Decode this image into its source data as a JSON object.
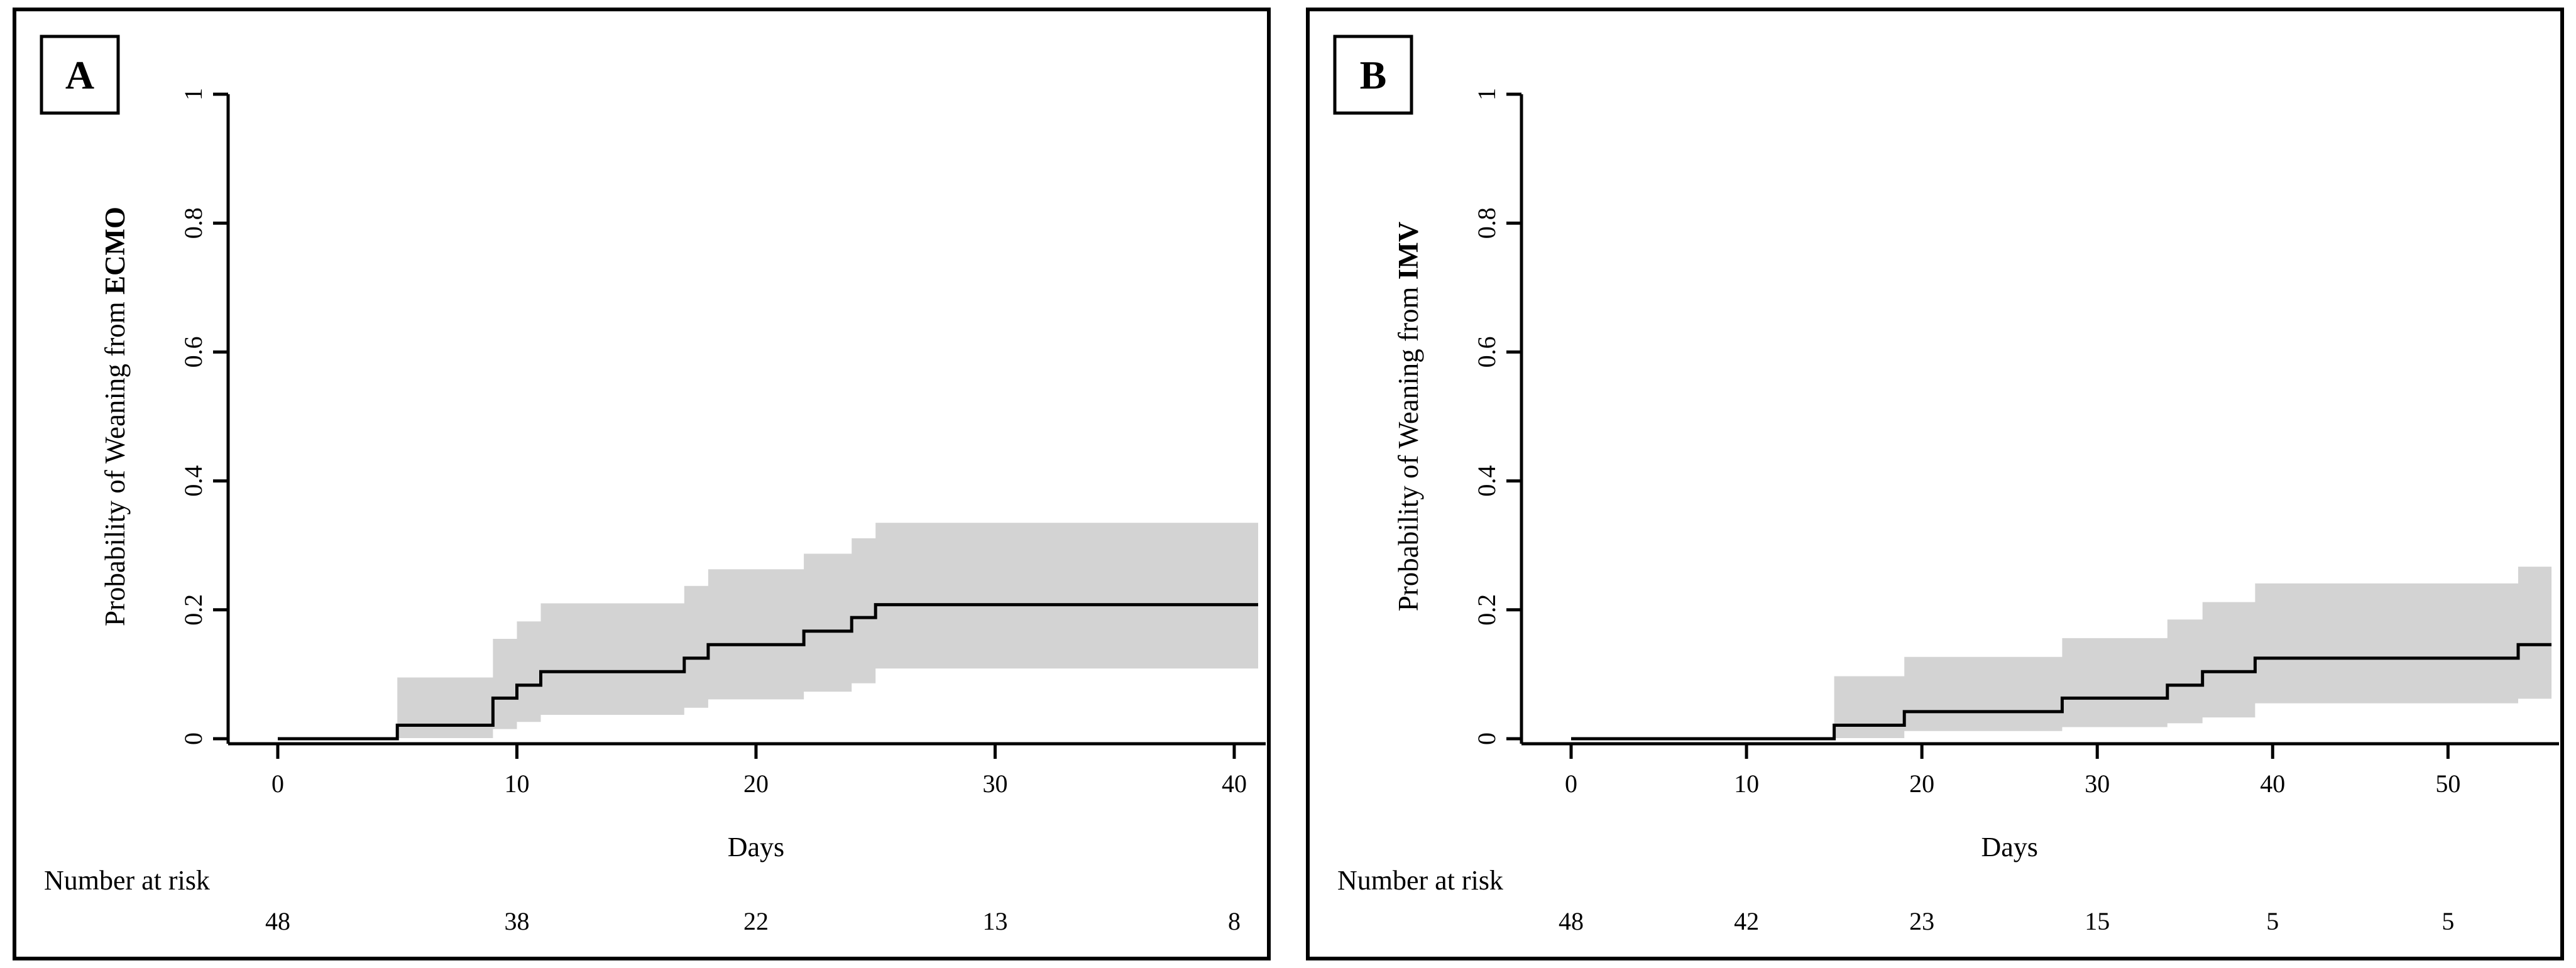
{
  "figure": {
    "background_color": "#ffffff",
    "border_color": "#000000",
    "curve_color": "#000000",
    "band_color": "#d3d3d3"
  },
  "chart_data": [
    {
      "type": "line",
      "panel_label": "A",
      "ylabel": "Probability of Weaning from ECMO",
      "ylabel_prefix": "Probability of Weaning from ",
      "ylabel_bold": "ECMO",
      "xlabel": "Days",
      "xlim": [
        0,
        41
      ],
      "ylim": [
        0,
        1
      ],
      "xticks": [
        0,
        10,
        20,
        30,
        40
      ],
      "yticks": [
        0,
        0.2,
        0.4,
        0.6,
        0.8,
        1
      ],
      "ytick_labels": [
        "0",
        "0.2",
        "0.4",
        "0.6",
        "0.8",
        "1"
      ],
      "grid": false,
      "legend": null,
      "step_curve": {
        "x": [
          0,
          5,
          9,
          10,
          11,
          17,
          18,
          22,
          24,
          25
        ],
        "y": [
          0,
          0.021,
          0.063,
          0.083,
          0.104,
          0.125,
          0.146,
          0.167,
          0.188,
          0.208
        ],
        "end_x": 41
      },
      "confidence_band": {
        "x": [
          5,
          9,
          10,
          11,
          17,
          18,
          22,
          24,
          25
        ],
        "lower": [
          0.001,
          0.015,
          0.026,
          0.037,
          0.048,
          0.061,
          0.073,
          0.086,
          0.109
        ],
        "upper": [
          0.095,
          0.155,
          0.182,
          0.21,
          0.237,
          0.263,
          0.287,
          0.311,
          0.335
        ],
        "end_x": 41
      },
      "number_at_risk": {
        "label": "Number at risk",
        "days": [
          0,
          10,
          20,
          30,
          40
        ],
        "values": [
          "48",
          "38",
          "22",
          "13",
          "8"
        ]
      }
    },
    {
      "type": "line",
      "panel_label": "B",
      "ylabel": "Probability of Weaning from IMV",
      "ylabel_prefix": "Probability of Weaning from ",
      "ylabel_bold": "IMV",
      "xlabel": "Days",
      "xlim": [
        0,
        56
      ],
      "ylim": [
        0,
        1
      ],
      "xticks": [
        0,
        10,
        20,
        30,
        40,
        50
      ],
      "yticks": [
        0,
        0.2,
        0.4,
        0.6,
        0.8,
        1
      ],
      "ytick_labels": [
        "0",
        "0.2",
        "0.4",
        "0.6",
        "0.8",
        "1"
      ],
      "grid": false,
      "legend": null,
      "step_curve": {
        "x": [
          0,
          15,
          19,
          28,
          34,
          36,
          39,
          54
        ],
        "y": [
          0,
          0.021,
          0.042,
          0.063,
          0.083,
          0.104,
          0.125,
          0.146
        ],
        "end_x": 55.9
      },
      "confidence_band": {
        "x": [
          15,
          19,
          28,
          34,
          36,
          39,
          54
        ],
        "lower": [
          0.001,
          0.012,
          0.018,
          0.024,
          0.033,
          0.055,
          0.062
        ],
        "upper": [
          0.097,
          0.127,
          0.156,
          0.185,
          0.212,
          0.241,
          0.267
        ],
        "end_x": 55.9
      },
      "number_at_risk": {
        "label": "Number at risk",
        "days": [
          0,
          10,
          20,
          30,
          40,
          50
        ],
        "values": [
          "48",
          "42",
          "23",
          "15",
          "5",
          "5"
        ]
      }
    }
  ]
}
